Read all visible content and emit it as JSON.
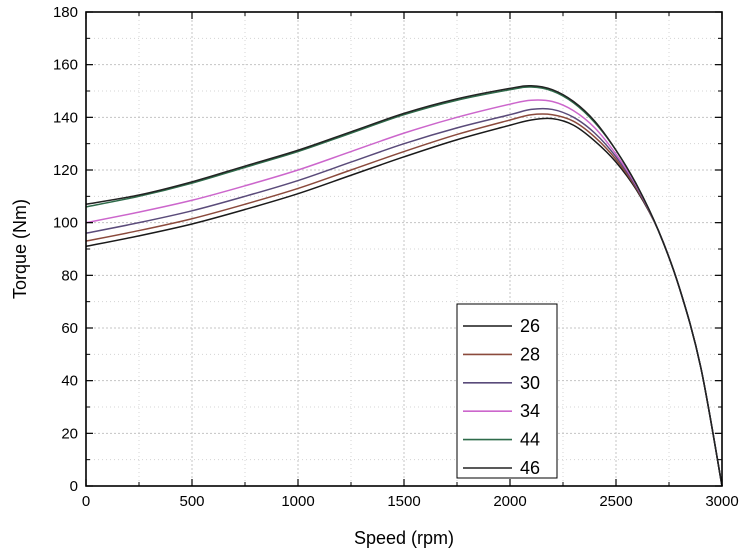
{
  "chart_data": {
    "type": "line",
    "title": "",
    "xlabel": "Speed (rpm)",
    "ylabel": "Torque (Nm)",
    "xlim": [
      0,
      3000
    ],
    "ylim": [
      0,
      180
    ],
    "x_ticks": [
      "0",
      "500",
      "1000",
      "1500",
      "2000",
      "2500",
      "3000"
    ],
    "y_ticks": [
      "0",
      "20",
      "40",
      "60",
      "80",
      "100",
      "120",
      "140",
      "160",
      "180"
    ],
    "grid": true,
    "legend_position": "bottom-center",
    "series": [
      {
        "name": "26",
        "color": "#1a1a1a",
        "points": [
          [
            0,
            91
          ],
          [
            250,
            95
          ],
          [
            500,
            99.5
          ],
          [
            750,
            105
          ],
          [
            1000,
            111
          ],
          [
            1250,
            118
          ],
          [
            1500,
            125
          ],
          [
            1750,
            131.5
          ],
          [
            2000,
            137
          ],
          [
            2100,
            139
          ],
          [
            2200,
            139.5
          ],
          [
            2300,
            137
          ],
          [
            2400,
            131
          ],
          [
            2500,
            123
          ],
          [
            2600,
            112
          ],
          [
            2700,
            97
          ],
          [
            2800,
            75
          ],
          [
            2900,
            45
          ],
          [
            3000,
            0
          ]
        ]
      },
      {
        "name": "28",
        "color": "#8b4a3c",
        "points": [
          [
            0,
            93
          ],
          [
            250,
            97
          ],
          [
            500,
            101.5
          ],
          [
            750,
            107
          ],
          [
            1000,
            113
          ],
          [
            1250,
            120
          ],
          [
            1500,
            127
          ],
          [
            1750,
            133.5
          ],
          [
            2000,
            139
          ],
          [
            2100,
            141
          ],
          [
            2200,
            141
          ],
          [
            2300,
            138.5
          ],
          [
            2400,
            132.5
          ],
          [
            2500,
            124
          ],
          [
            2600,
            112.5
          ],
          [
            2700,
            97
          ],
          [
            2800,
            75
          ],
          [
            2900,
            45
          ],
          [
            3000,
            0
          ]
        ]
      },
      {
        "name": "30",
        "color": "#5a4b7a",
        "points": [
          [
            0,
            96
          ],
          [
            250,
            100
          ],
          [
            500,
            104.5
          ],
          [
            750,
            110
          ],
          [
            1000,
            116
          ],
          [
            1250,
            123
          ],
          [
            1500,
            130
          ],
          [
            1750,
            136
          ],
          [
            2000,
            141
          ],
          [
            2100,
            143
          ],
          [
            2200,
            143
          ],
          [
            2300,
            140
          ],
          [
            2400,
            134
          ],
          [
            2500,
            125
          ],
          [
            2600,
            113
          ],
          [
            2700,
            97
          ],
          [
            2800,
            75
          ],
          [
            2900,
            45
          ],
          [
            3000,
            0
          ]
        ]
      },
      {
        "name": "34",
        "color": "#cc66cc",
        "points": [
          [
            0,
            100
          ],
          [
            250,
            104
          ],
          [
            500,
            108.5
          ],
          [
            750,
            114
          ],
          [
            1000,
            120
          ],
          [
            1250,
            127
          ],
          [
            1500,
            134
          ],
          [
            1750,
            140
          ],
          [
            2000,
            145
          ],
          [
            2100,
            146.5
          ],
          [
            2200,
            146
          ],
          [
            2300,
            142.5
          ],
          [
            2400,
            136
          ],
          [
            2500,
            126
          ],
          [
            2600,
            113.5
          ],
          [
            2700,
            97
          ],
          [
            2800,
            75
          ],
          [
            2900,
            45
          ],
          [
            3000,
            0
          ]
        ]
      },
      {
        "name": "44",
        "color": "#2e6b4a",
        "points": [
          [
            0,
            106
          ],
          [
            250,
            110
          ],
          [
            500,
            115
          ],
          [
            750,
            121
          ],
          [
            1000,
            127
          ],
          [
            1250,
            134
          ],
          [
            1500,
            141
          ],
          [
            1750,
            146.5
          ],
          [
            2000,
            150.5
          ],
          [
            2100,
            151.5
          ],
          [
            2200,
            150
          ],
          [
            2300,
            145.5
          ],
          [
            2400,
            138
          ],
          [
            2500,
            127.5
          ],
          [
            2600,
            114
          ],
          [
            2700,
            97
          ],
          [
            2800,
            75
          ],
          [
            2900,
            45
          ],
          [
            3000,
            0
          ]
        ]
      },
      {
        "name": "46",
        "color": "#222222",
        "points": [
          [
            0,
            107
          ],
          [
            250,
            110.5
          ],
          [
            500,
            115.5
          ],
          [
            750,
            121.5
          ],
          [
            1000,
            127.5
          ],
          [
            1250,
            134.5
          ],
          [
            1500,
            141.5
          ],
          [
            1750,
            147
          ],
          [
            2000,
            151
          ],
          [
            2100,
            152
          ],
          [
            2200,
            150.5
          ],
          [
            2300,
            146
          ],
          [
            2400,
            138.5
          ],
          [
            2500,
            127.5
          ],
          [
            2600,
            114
          ],
          [
            2700,
            97
          ],
          [
            2800,
            75
          ],
          [
            2900,
            45
          ],
          [
            3000,
            0
          ]
        ]
      }
    ]
  }
}
